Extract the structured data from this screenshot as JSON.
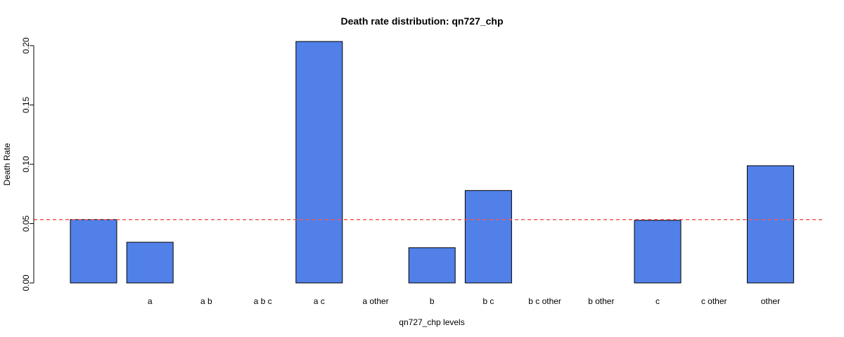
{
  "chart_data": {
    "type": "bar",
    "title": "Death rate distribution: qn727_chp",
    "xlabel": "qn727_chp levels",
    "ylabel": "Death Rate",
    "categories": [
      "",
      "a",
      "a b",
      "a b c",
      "a c",
      "a other",
      "b",
      "b c",
      "b c other",
      "b other",
      "c",
      "c other",
      "other"
    ],
    "values": [
      0.0534,
      0.0343,
      0.0,
      0.0,
      0.2035,
      0.0,
      0.0297,
      0.0779,
      0.0,
      0.0,
      0.0528,
      0.0,
      0.0988
    ],
    "ylim": [
      0,
      0.2
    ],
    "yticks": [
      "0.00",
      "0.05",
      "0.10",
      "0.15",
      "0.20"
    ],
    "reference_line": 0.0534,
    "bar_color": "#5080E8",
    "reference_color": "#F25A5A",
    "grid": false
  }
}
